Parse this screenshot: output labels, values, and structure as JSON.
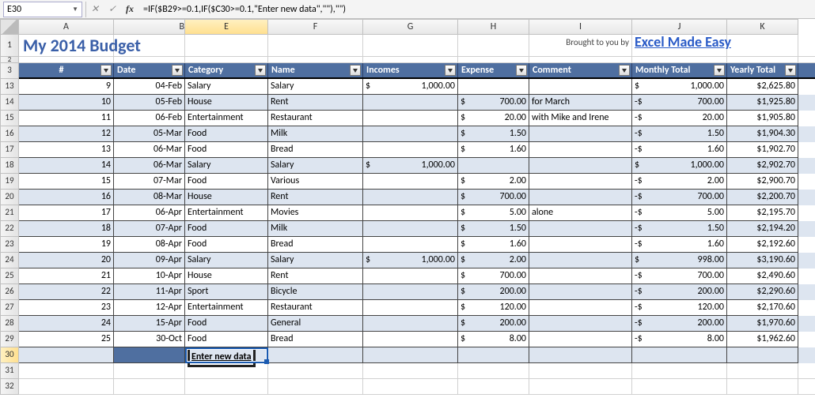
{
  "formula_bar": {
    "name_box": "E30",
    "formula": "=IF($B29>=0.1,IF($C30>=0.1,\"Enter new data\",\"\"),\"\")"
  },
  "columns": [
    "A",
    "B",
    "E",
    "F",
    "G",
    "H",
    "I",
    "J",
    "K"
  ],
  "visible_row_labels": [
    "1",
    "2",
    "3",
    "13",
    "14",
    "15",
    "16",
    "17",
    "18",
    "19",
    "20",
    "21",
    "22",
    "23",
    "24",
    "25",
    "26",
    "27",
    "28",
    "29",
    "30",
    "31",
    "32"
  ],
  "active_col": "E",
  "active_row": "30",
  "title": "My 2014 Budget",
  "brought_by": "Brought to you by",
  "brand": "Excel Made Easy",
  "headers": [
    "#",
    "Date",
    "Category",
    "Name",
    "Incomes",
    "Expense",
    "Comment",
    "Monthly Total",
    "Yearly Total"
  ],
  "rows": [
    {
      "n": "9",
      "date": "04-Feb",
      "cat": "Salary",
      "name": "Salary",
      "inc": "$        1,000.00",
      "exp": "",
      "cmt": "",
      "mon": " $           1,000.00",
      "yr": "$2,625.80"
    },
    {
      "n": "10",
      "date": "05-Feb",
      "cat": "House",
      "name": "Rent",
      "inc": "",
      "exp": "$        700.00",
      "cmt": "for March",
      "mon": "-$              700.00",
      "yr": "$1,925.80"
    },
    {
      "n": "11",
      "date": "06-Feb",
      "cat": "Entertainment",
      "name": "Restaurant",
      "inc": "",
      "exp": "$          20.00",
      "cmt": "with Mike and Irene",
      "mon": "-$                20.00",
      "yr": "$1,905.80"
    },
    {
      "n": "12",
      "date": "05-Mar",
      "cat": "Food",
      "name": "Milk",
      "inc": "",
      "exp": "$            1.50",
      "cmt": "",
      "mon": "-$                  1.50",
      "yr": "$1,904.30"
    },
    {
      "n": "13",
      "date": "06-Mar",
      "cat": "Food",
      "name": "Bread",
      "inc": "",
      "exp": "$            1.60",
      "cmt": "",
      "mon": "-$                  1.60",
      "yr": "$1,902.70"
    },
    {
      "n": "14",
      "date": "06-Mar",
      "cat": "Salary",
      "name": "Salary",
      "inc": "$        1,000.00",
      "exp": "",
      "cmt": "",
      "mon": " $           1,000.00",
      "yr": "$2,902.70"
    },
    {
      "n": "15",
      "date": "07-Mar",
      "cat": "Food",
      "name": "Various",
      "inc": "",
      "exp": "$            2.00",
      "cmt": "",
      "mon": "-$                  2.00",
      "yr": "$2,900.70"
    },
    {
      "n": "16",
      "date": "08-Mar",
      "cat": "House",
      "name": "Rent",
      "inc": "",
      "exp": "$        700.00",
      "cmt": "",
      "mon": "-$              700.00",
      "yr": "$2,200.70"
    },
    {
      "n": "17",
      "date": "06-Apr",
      "cat": "Entertainment",
      "name": "Movies",
      "inc": "",
      "exp": "$            5.00",
      "cmt": "alone",
      "mon": "-$                  5.00",
      "yr": "$2,195.70"
    },
    {
      "n": "18",
      "date": "07-Apr",
      "cat": "Food",
      "name": "Milk",
      "inc": "",
      "exp": "$            1.50",
      "cmt": "",
      "mon": "-$                  1.50",
      "yr": "$2,194.20"
    },
    {
      "n": "19",
      "date": "08-Apr",
      "cat": "Food",
      "name": "Bread",
      "inc": "",
      "exp": "$            1.60",
      "cmt": "",
      "mon": "-$                  1.60",
      "yr": "$2,192.60"
    },
    {
      "n": "20",
      "date": "09-Apr",
      "cat": "Salary",
      "name": "Salary",
      "inc": "$        1,000.00",
      "exp": "$            2.00",
      "cmt": "",
      "mon": " $              998.00",
      "yr": "$3,190.60"
    },
    {
      "n": "21",
      "date": "10-Apr",
      "cat": "House",
      "name": "Rent",
      "inc": "",
      "exp": "$        700.00",
      "cmt": "",
      "mon": "-$              700.00",
      "yr": "$2,490.60"
    },
    {
      "n": "22",
      "date": "11-Apr",
      "cat": "Sport",
      "name": "Bicycle",
      "inc": "",
      "exp": "$        200.00",
      "cmt": "",
      "mon": "-$              200.00",
      "yr": "$2,290.60"
    },
    {
      "n": "23",
      "date": "12-Apr",
      "cat": "Entertainment",
      "name": "Restaurant",
      "inc": "",
      "exp": "$        120.00",
      "cmt": "",
      "mon": "-$              120.00",
      "yr": "$2,170.60"
    },
    {
      "n": "24",
      "date": "15-Apr",
      "cat": "Food",
      "name": "General",
      "inc": "",
      "exp": "$        200.00",
      "cmt": "",
      "mon": "-$              200.00",
      "yr": "$1,970.60"
    },
    {
      "n": "25",
      "date": "30-Oct",
      "cat": "Food",
      "name": "Bread",
      "inc": "",
      "exp": "$            8.00",
      "cmt": "",
      "mon": "-$                  8.00",
      "yr": "$1,962.60"
    }
  ],
  "enter_new_data": "Enter new data",
  "colors": {
    "header_bg": "#4f6fa0",
    "band_bg": "#dde5f0",
    "title_color": "#3a5fa8",
    "brand_color": "#2a5bc7"
  }
}
